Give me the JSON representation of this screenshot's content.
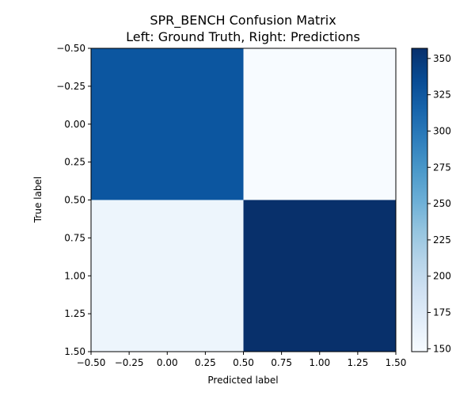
{
  "chart_data": {
    "type": "heatmap",
    "title_lines": [
      "SPR_BENCH Confusion Matrix",
      "Left: Ground Truth, Right: Predictions"
    ],
    "xlabel": "Predicted label",
    "ylabel": "True label",
    "xlim": [
      -0.5,
      1.5
    ],
    "ylim": [
      1.5,
      -0.5
    ],
    "x_ticks": [
      "−0.50",
      "−0.25",
      "0.00",
      "0.25",
      "0.50",
      "0.75",
      "1.00",
      "1.25",
      "1.50"
    ],
    "x_tick_values": [
      -0.5,
      -0.25,
      0.0,
      0.25,
      0.5,
      0.75,
      1.0,
      1.25,
      1.5
    ],
    "y_ticks": [
      "−0.50",
      "−0.25",
      "0.00",
      "0.25",
      "0.50",
      "0.75",
      "1.00",
      "1.25",
      "1.50"
    ],
    "y_tick_values": [
      -0.5,
      -0.25,
      0.0,
      0.25,
      0.5,
      0.75,
      1.0,
      1.25,
      1.5
    ],
    "matrix": [
      [
        327,
        148
      ],
      [
        158,
        357
      ]
    ],
    "colormap": "Blues",
    "colorbar": {
      "min": 148,
      "max": 357,
      "ticks": [
        "150",
        "175",
        "200",
        "225",
        "250",
        "275",
        "300",
        "325",
        "350"
      ],
      "tick_values": [
        150,
        175,
        200,
        225,
        250,
        275,
        300,
        325,
        350
      ]
    },
    "grid": false
  }
}
